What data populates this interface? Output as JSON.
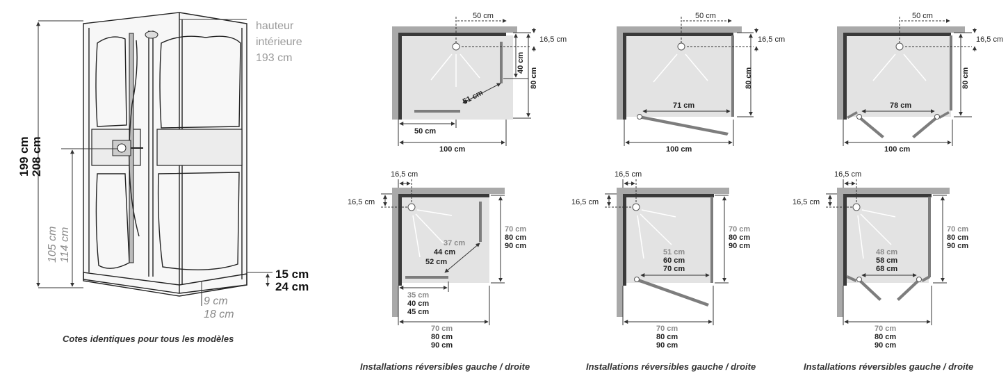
{
  "cabin": {
    "inner_height": [
      "hauteur",
      "intérieure",
      "193 cm"
    ],
    "total_height_a": "199 cm",
    "total_height_b": "208 cm",
    "mixer_height_a": "105 cm",
    "mixer_height_b": "114 cm",
    "tray_height_a": "15 cm",
    "tray_height_b": "24 cm",
    "tray_offset_a": "9 cm",
    "tray_offset_b": "18 cm",
    "caption": "Cotes identiques pour tous les modèles"
  },
  "top_row": [
    {
      "top": "50 cm",
      "side_offset": "16,5 cm",
      "side_short": "40 cm",
      "depth": "80 cm",
      "diag": "51 cm",
      "bottom_short": "50 cm",
      "width": "100 cm"
    },
    {
      "top": "50 cm",
      "side_offset": "16,5 cm",
      "depth": "80 cm",
      "opening": "71 cm",
      "width": "100 cm"
    },
    {
      "top": "50 cm",
      "side_offset": "16,5 cm",
      "depth": "80 cm",
      "opening": "78 cm",
      "width": "100 cm"
    }
  ],
  "bottom_row": [
    {
      "top_offset": "16,5 cm",
      "left_offset": "16,5 cm",
      "depth": [
        "70 cm",
        "80 cm",
        "90 cm"
      ],
      "diag": [
        "37 cm",
        "44 cm",
        "52 cm"
      ],
      "bottom_short": [
        "35 cm",
        "40 cm",
        "45 cm"
      ],
      "width": [
        "70 cm",
        "80 cm",
        "90 cm"
      ]
    },
    {
      "top_offset": "16,5 cm",
      "left_offset": "16,5 cm",
      "depth": [
        "70 cm",
        "80 cm",
        "90 cm"
      ],
      "opening": [
        "51 cm",
        "60 cm",
        "70 cm"
      ],
      "width": [
        "70 cm",
        "80 cm",
        "90 cm"
      ]
    },
    {
      "top_offset": "16,5 cm",
      "left_offset": "16,5 cm",
      "depth": [
        "70 cm",
        "80 cm",
        "90 cm"
      ],
      "opening": [
        "48 cm",
        "58 cm",
        "68 cm"
      ],
      "width": [
        "70 cm",
        "80 cm",
        "90 cm"
      ]
    }
  ],
  "captions": [
    "Installations réversibles gauche / droite",
    "Installations réversibles gauche / droite",
    "Installations réversibles gauche / droite"
  ]
}
